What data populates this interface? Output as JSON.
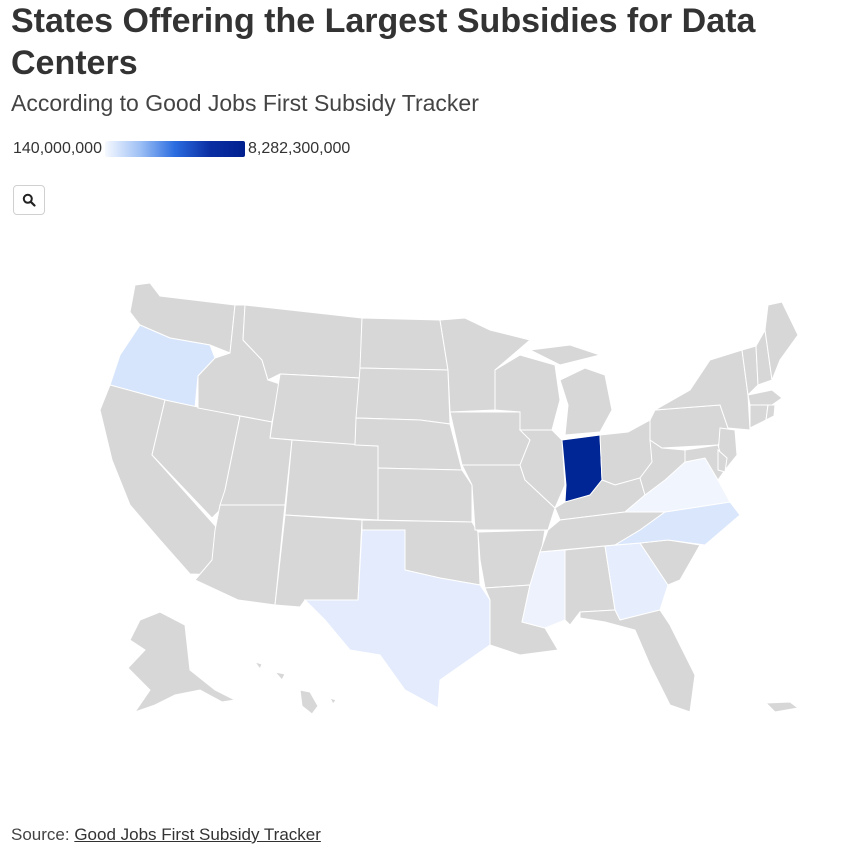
{
  "title": "States Offering the Largest Subsidies for Data Centers",
  "subtitle": "According to Good Jobs First Subsidy Tracker",
  "legend": {
    "min_label": "140,000,000",
    "max_label": "8,282,300,000",
    "min_color": "#f6f9ff",
    "max_color": "#00208f"
  },
  "zoom_button": {
    "icon": "search-icon"
  },
  "map": {
    "base_color": "#d7d7d7",
    "highlighted_states": [
      {
        "state": "Indiana",
        "color": "#002594"
      },
      {
        "state": "Oregon",
        "color": "#d6e5fc"
      },
      {
        "state": "North Carolina",
        "color": "#d9e6fb"
      },
      {
        "state": "Texas",
        "color": "#e3ebfc"
      },
      {
        "state": "Georgia",
        "color": "#e6eefd"
      },
      {
        "state": "Mississippi",
        "color": "#eef2fd"
      },
      {
        "state": "Virginia",
        "color": "#f1f5fe"
      }
    ]
  },
  "source": {
    "prefix": "Source: ",
    "link_text": "Good Jobs First Subsidy Tracker"
  }
}
